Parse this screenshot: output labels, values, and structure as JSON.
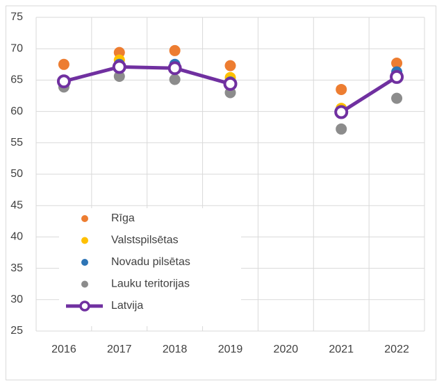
{
  "chart_data": {
    "type": "line",
    "categories": [
      "2016",
      "2017",
      "2018",
      "2019",
      "2020",
      "2021",
      "2022"
    ],
    "ylim": [
      25,
      75
    ],
    "yticks": [
      25,
      30,
      35,
      40,
      45,
      50,
      55,
      60,
      65,
      70,
      75
    ],
    "grid": true,
    "legend": "lower-left",
    "series": [
      {
        "name": "Rīga",
        "color": "#ed7d31",
        "style": "markers",
        "values": [
          67.5,
          69.4,
          69.7,
          67.3,
          null,
          63.5,
          67.7
        ]
      },
      {
        "name": "Valstspilsētas",
        "color": "#ffc000",
        "style": "markers",
        "values": [
          64.8,
          68.2,
          67.2,
          65.4,
          null,
          60.5,
          66.0
        ]
      },
      {
        "name": "Novadu pilsētas",
        "color": "#2e75b6",
        "style": "markers",
        "values": [
          64.5,
          67.5,
          67.5,
          64.7,
          null,
          60.0,
          66.3
        ]
      },
      {
        "name": "Lauku teritorijas",
        "color": "#8c8c8c",
        "style": "markers",
        "values": [
          63.9,
          65.6,
          65.1,
          63.0,
          null,
          57.2,
          62.1
        ]
      },
      {
        "name": "Latvija",
        "color": "#7030a0",
        "style": "line",
        "values": [
          64.8,
          67.1,
          66.9,
          64.4,
          null,
          59.9,
          65.5
        ]
      }
    ]
  }
}
